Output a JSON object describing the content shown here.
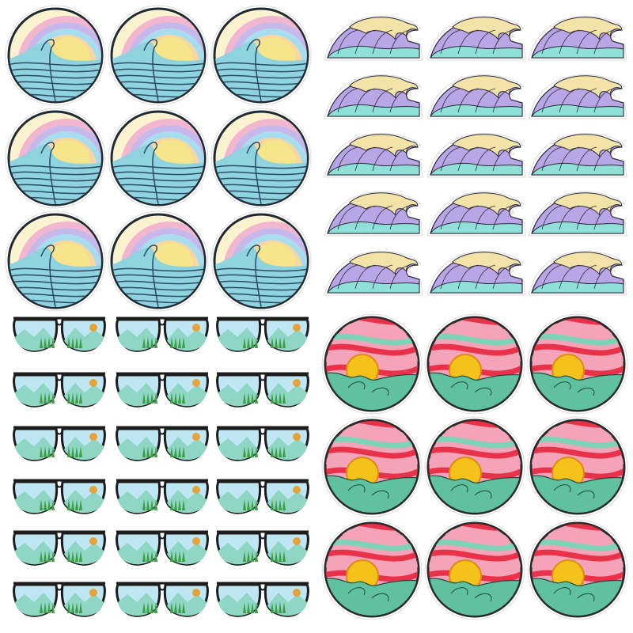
{
  "panels": [
    {
      "id": "sunset-rainbow-patches",
      "design": "rainbow-sun-wave",
      "cols": 3,
      "rows": 3,
      "colors": {
        "rim": "#1f2a33",
        "sun": "#f7e58c",
        "rainbow": [
          "#f2b6cf",
          "#c6b8ea",
          "#a8dcef",
          "#f7d6a0"
        ],
        "wave": "#8fd3df",
        "waveLine": "#2a4a66",
        "sky": "#fbf3d0"
      }
    },
    {
      "id": "great-wave-patches",
      "design": "purple-wave",
      "cols": 3,
      "rows": 5,
      "colors": {
        "body": "#b9a6e6",
        "foam": "#f4e3a8",
        "base": "#8fe0d8",
        "line": "#2b2b3a"
      }
    },
    {
      "id": "aviator-sunglasses-patches",
      "design": "mountain-sunglasses",
      "cols": 3,
      "rows": 6,
      "colors": {
        "frame": "#1c1c1c",
        "sky": "#bfe7f3",
        "mountain": "#8fd6c4",
        "trees": "#3e9e45",
        "sun": "#e7a23a"
      }
    },
    {
      "id": "coral-sunset-patches",
      "design": "striped-sun-wave",
      "cols": 3,
      "rows": 3,
      "colors": {
        "rim": "#2a2a2a",
        "stripeA": "#e8324a",
        "stripeB": "#f5a3b8",
        "stripeC": "#7ed3b6",
        "sun": "#f4c21b",
        "sea": "#5fc1a0"
      }
    }
  ]
}
